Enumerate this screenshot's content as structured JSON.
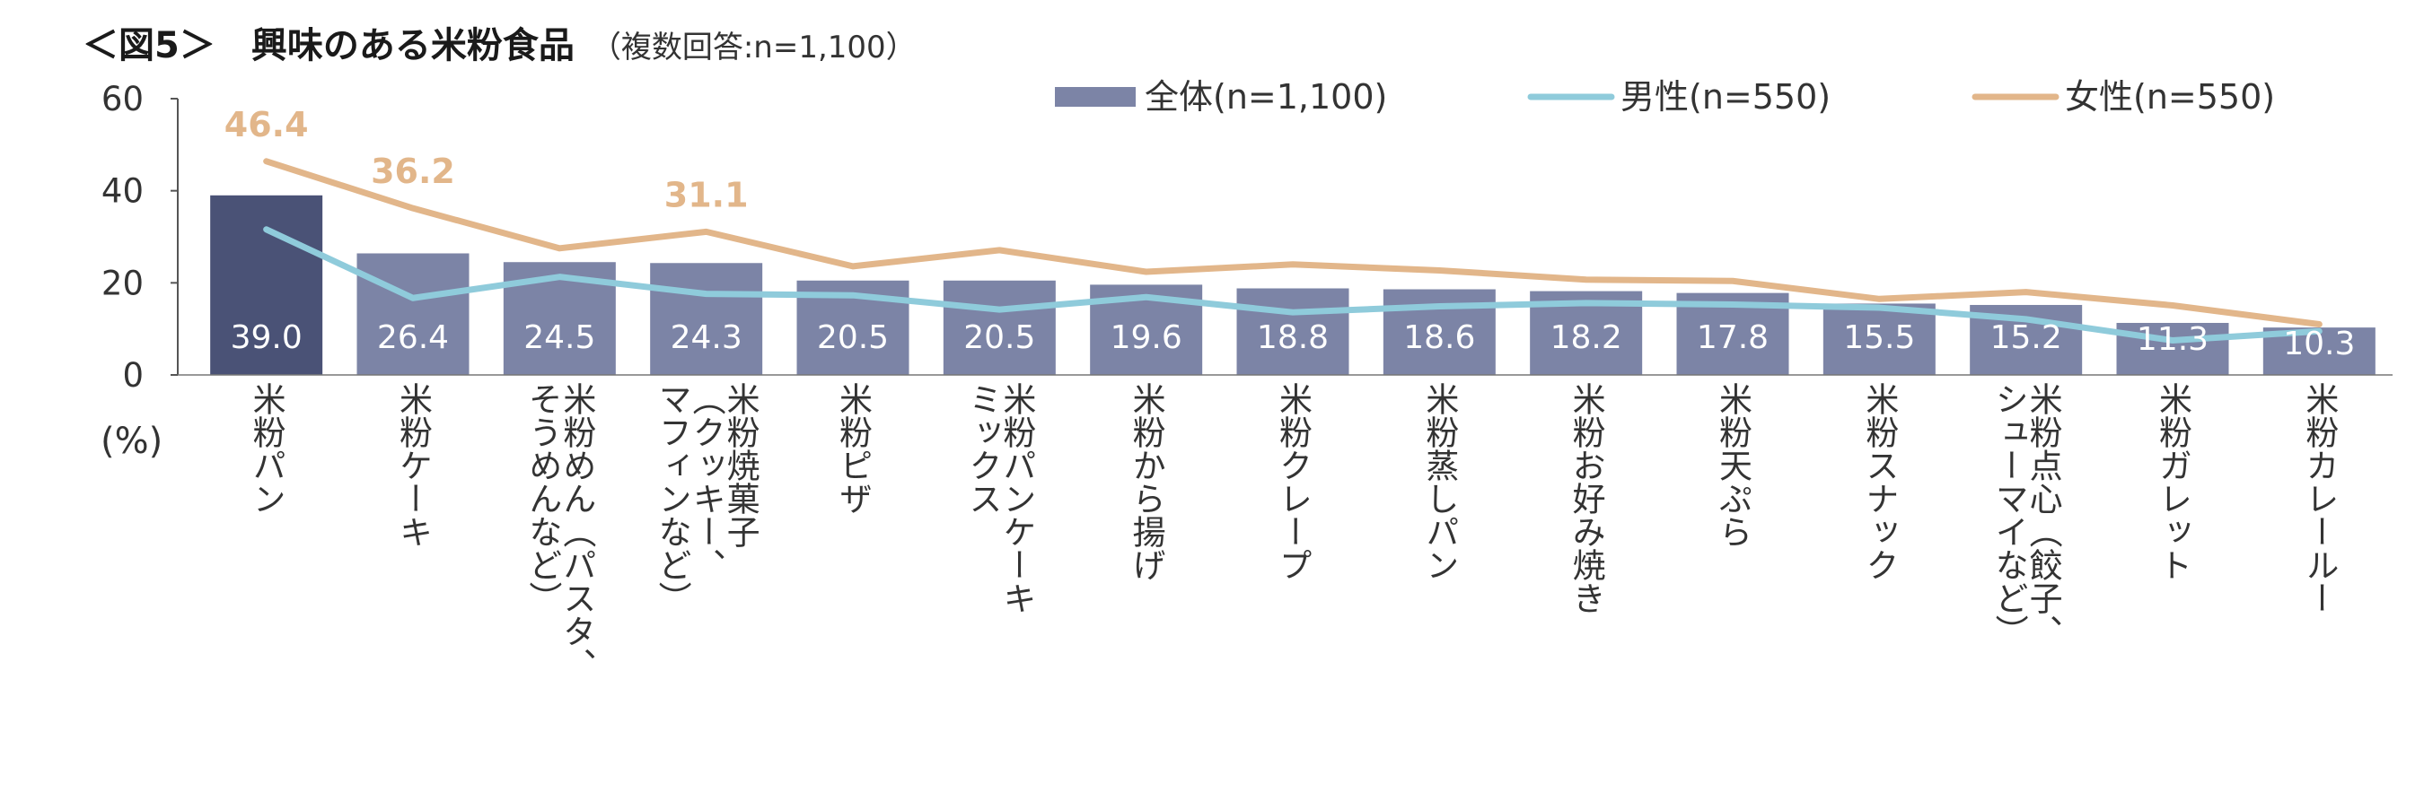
{
  "title": "＜図5＞　興味のある米粉食品",
  "subtitle": "（複数回答:n=1,100）",
  "chart_data": {
    "type": "bar",
    "title": "＜図5＞　興味のある米粉食品",
    "subtitle": "（複数回答:n=1,100）",
    "ylabel": "(%)",
    "ylim": [
      0,
      60
    ],
    "yticks": [
      "0",
      "20",
      "40",
      "60"
    ],
    "grid": false,
    "legend_position": "top-right",
    "categories": [
      [
        "米粉パン"
      ],
      [
        "米粉ケーキ"
      ],
      [
        "米粉めん（パスタ、",
        "そうめんなど）"
      ],
      [
        "米粉焼菓子",
        "（クッキー、",
        "マフィンなど）"
      ],
      [
        "米粉ピザ"
      ],
      [
        "米粉パンケーキ",
        "ミックス"
      ],
      [
        "米粉から揚げ"
      ],
      [
        "米粉クレープ"
      ],
      [
        "米粉蒸しパン"
      ],
      [
        "米粉お好み焼き"
      ],
      [
        "米粉天ぷら"
      ],
      [
        "米粉スナック"
      ],
      [
        "米粉点心（餃子、",
        "シューマイなど）"
      ],
      [
        "米粉ガレット"
      ],
      [
        "米粉カレールー"
      ]
    ],
    "series": [
      {
        "name": "全体(n=1,100)",
        "type": "bar",
        "color": "#7C84A6",
        "highlight_color": "#4A5276",
        "values": [
          39.0,
          26.4,
          24.5,
          24.3,
          20.5,
          20.5,
          19.6,
          18.8,
          18.6,
          18.2,
          17.8,
          15.5,
          15.2,
          11.3,
          10.3
        ],
        "labels": [
          "39.0",
          "26.4",
          "24.5",
          "24.3",
          "20.5",
          "20.5",
          "19.6",
          "18.8",
          "18.6",
          "18.2",
          "17.8",
          "15.5",
          "15.2",
          "11.3",
          "10.3"
        ]
      },
      {
        "name": "男性(n=550)",
        "type": "line",
        "color": "#8FCBDB",
        "values": [
          31.6,
          16.7,
          21.3,
          17.6,
          17.3,
          14.2,
          16.9,
          13.6,
          14.9,
          15.6,
          15.3,
          14.6,
          12.1,
          7.5,
          9.5
        ]
      },
      {
        "name": "女性(n=550)",
        "type": "line",
        "color": "#E2B68A",
        "values": [
          46.4,
          36.2,
          27.5,
          31.1,
          23.6,
          27.1,
          22.4,
          24.0,
          22.7,
          20.7,
          20.4,
          16.5,
          18.0,
          15.1,
          11.0
        ],
        "annotations": [
          {
            "index": 0,
            "text": "46.4"
          },
          {
            "index": 1,
            "text": "36.2"
          },
          {
            "index": 3,
            "text": "31.1"
          }
        ]
      }
    ]
  }
}
